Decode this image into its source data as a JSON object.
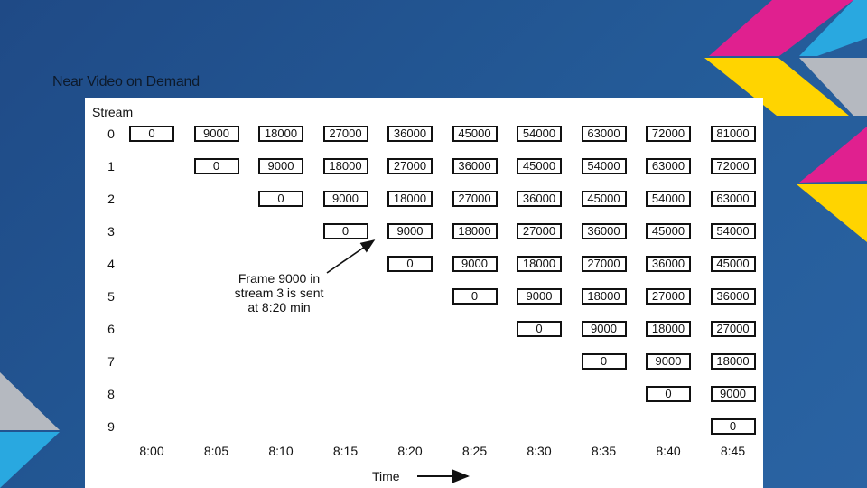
{
  "slide": {
    "title": "Near Video on Demand"
  },
  "diagram": {
    "stream_header": "Stream",
    "streams": [
      "0",
      "1",
      "2",
      "3",
      "4",
      "5",
      "6",
      "7",
      "8",
      "9"
    ],
    "times": [
      "8:00",
      "8:05",
      "8:10",
      "8:15",
      "8:20",
      "8:25",
      "8:30",
      "8:35",
      "8:40",
      "8:45"
    ],
    "frames_per_step": 9000,
    "annotation": [
      "Frame 9000 in",
      "stream 3 is sent",
      "at 8:20 min"
    ],
    "time_axis_label": "Time"
  },
  "colors": {
    "background": "#245b98",
    "magenta": "#e0208f",
    "yellow": "#ffd400",
    "cyan": "#29a8e0",
    "gray": "#b5b9c0"
  }
}
